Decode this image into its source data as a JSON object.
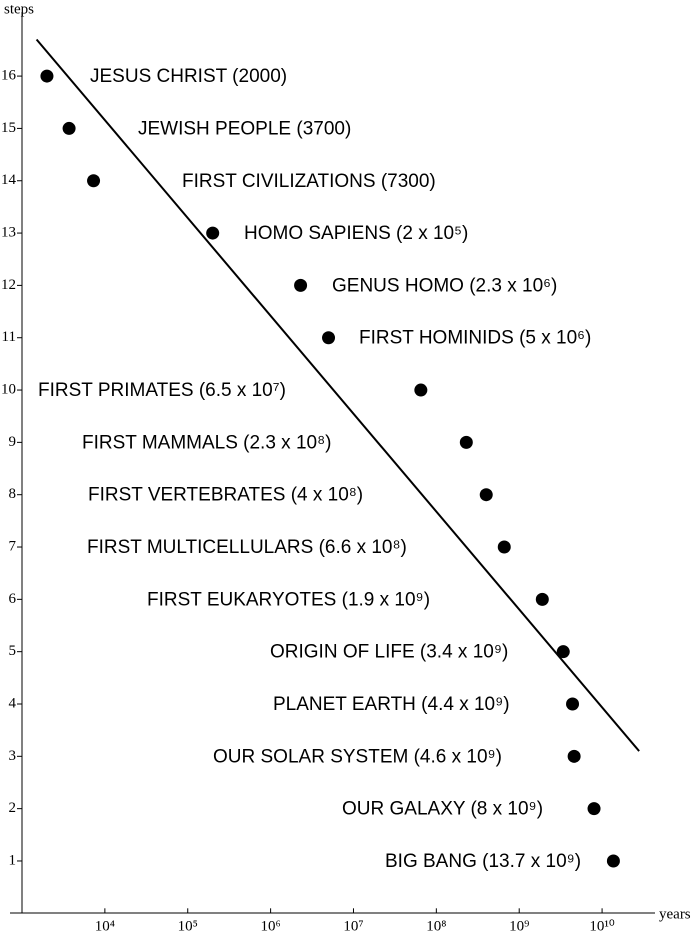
{
  "chart_data": {
    "type": "scatter",
    "x_label": "years",
    "y_label": "steps",
    "x_log": true,
    "xlim": [
      1000,
      50000000000
    ],
    "ylim": [
      0,
      17.2
    ],
    "xticks": [
      {
        "value": 10000,
        "label": "10⁴"
      },
      {
        "value": 100000,
        "label": "10⁵"
      },
      {
        "value": 1000000,
        "label": "10⁶"
      },
      {
        "value": 10000000,
        "label": "10⁷"
      },
      {
        "value": 100000000,
        "label": "10⁸"
      },
      {
        "value": 1000000000,
        "label": "10⁹"
      },
      {
        "value": 10000000000,
        "label": "10¹⁰"
      }
    ],
    "yticks": [
      1,
      2,
      3,
      4,
      5,
      6,
      7,
      8,
      9,
      10,
      11,
      12,
      13,
      14,
      15,
      16
    ],
    "color": "#000000",
    "x": [
      2000,
      3700,
      7300,
      200000,
      2300000,
      5000000,
      65000000,
      230000000,
      400000000,
      660000000,
      1900000000,
      3400000000,
      4400000000,
      4600000000,
      8000000000,
      13700000000
    ],
    "y": [
      16,
      15,
      14,
      13,
      12,
      11,
      10,
      9,
      8,
      7,
      6,
      5,
      4,
      3,
      2,
      1
    ],
    "labels": [
      "JESUS CHRIST (2000)",
      "JEWISH PEOPLE (3700)",
      "FIRST CIVILIZATIONS (7300)",
      "HOMO SAPIENS (2 x 10⁵)",
      "GENUS HOMO (2.3 x 10⁶)",
      "FIRST HOMINIDS (5 x 10⁶)",
      "FIRST PRIMATES (6.5 x 10⁷)",
      "FIRST MAMMALS (2.3 x 10⁸)",
      "FIRST VERTEBRATES (4 x 10⁸)",
      "FIRST MULTICELLULARS (6.6 x 10⁸)",
      "FIRST EUKARYOTES (1.9 x 10⁹)",
      "ORIGIN OF LIFE (3.4 x 10⁹)",
      "PLANET EARTH (4.4 x 10⁹)",
      "OUR SOLAR SYSTEM (4.6 x 10⁹)",
      "OUR GALAXY (8 x 10⁹)",
      "BIG BANG (13.7 x 10⁹)"
    ],
    "trend": {
      "x": [
        1500,
        28000000000
      ],
      "y": [
        16.7,
        3.1
      ]
    }
  }
}
